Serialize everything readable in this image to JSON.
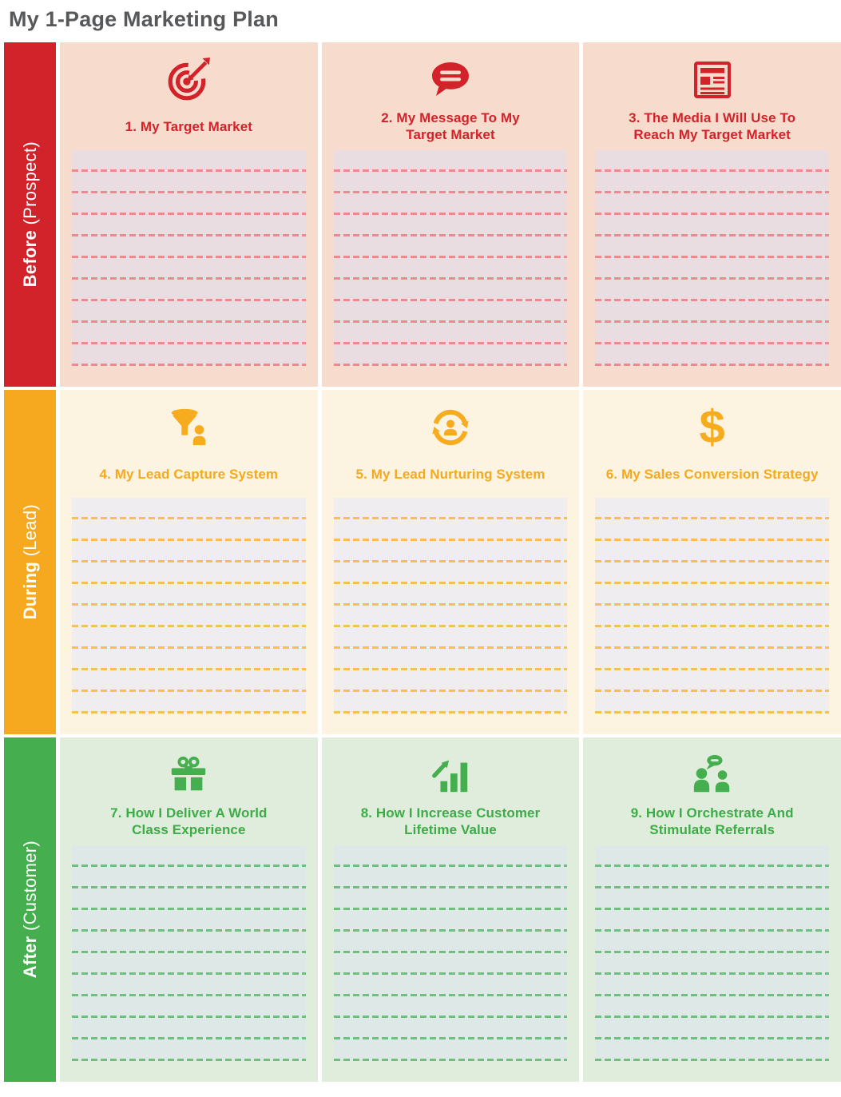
{
  "page_title": "My 1-Page Marketing Plan",
  "writing_lines_per_cell": 10,
  "rows": [
    {
      "id": "before",
      "label_bold": "Before",
      "label_regular": "(Prospect)",
      "colors": {
        "accent": "#D2232B",
        "cell_bg": "#F7DBCC",
        "lines_bg": "#EADDE1",
        "line_color": "#EC8A8E"
      },
      "cells": [
        {
          "icon": "target-icon",
          "title_lines": [
            "1. My Target Market",
            ""
          ]
        },
        {
          "icon": "speech-bubble-icon",
          "title_lines": [
            "2. My Message To My",
            "Target Market"
          ]
        },
        {
          "icon": "newspaper-icon",
          "title_lines": [
            "3. The Media I Will Use To",
            "Reach My Target Market"
          ]
        }
      ]
    },
    {
      "id": "during",
      "label_bold": "During",
      "label_regular": "(Lead)",
      "colors": {
        "accent": "#F6A81E",
        "cell_bg": "#FCF4E1",
        "lines_bg": "#EFEDEF",
        "line_color": "#F5C155"
      },
      "cells": [
        {
          "icon": "funnel-person-icon",
          "title_lines": [
            "4. My Lead Capture System",
            ""
          ]
        },
        {
          "icon": "refresh-person-icon",
          "title_lines": [
            "5. My Lead Nurturing System",
            ""
          ]
        },
        {
          "icon": "dollar-icon",
          "title_lines": [
            "6. My Sales Conversion Strategy",
            ""
          ],
          "dollar_glyph": "$"
        }
      ]
    },
    {
      "id": "after",
      "label_bold": "After",
      "label_regular": "(Customer)",
      "colors": {
        "accent": "#45AE4E",
        "cell_bg": "#E1EDDC",
        "lines_bg": "#DEE9E7",
        "line_color": "#6FBF7E"
      },
      "cells": [
        {
          "icon": "gift-icon",
          "title_lines": [
            "7. How I Deliver A World",
            "Class Experience"
          ]
        },
        {
          "icon": "growth-chart-icon",
          "title_lines": [
            "8. How I Increase Customer",
            "Lifetime Value"
          ]
        },
        {
          "icon": "referral-people-icon",
          "title_lines": [
            "9. How I Orchestrate And",
            "Stimulate Referrals"
          ]
        }
      ]
    }
  ]
}
